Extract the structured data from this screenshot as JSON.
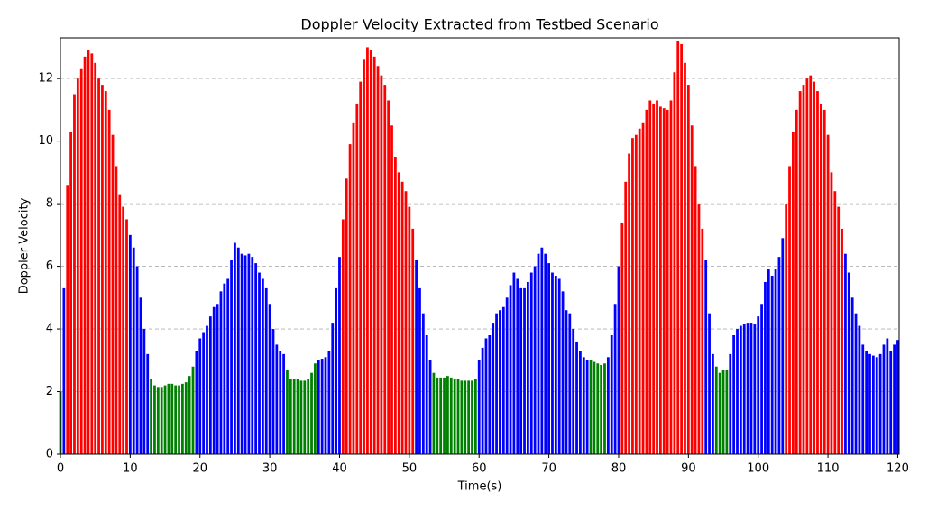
{
  "chart_data": {
    "type": "bar",
    "title": "Doppler Velocity Extracted from Testbed Scenario",
    "xlabel": "Time(s)",
    "ylabel": "Doppler Velocity",
    "x": [
      0,
      0.5,
      1,
      1.5,
      2,
      2.5,
      3,
      3.5,
      4,
      4.5,
      5,
      5.5,
      6,
      6.5,
      7,
      7.5,
      8,
      8.5,
      9,
      9.5,
      10,
      10.5,
      11,
      11.5,
      12,
      12.5,
      13,
      13.5,
      14,
      14.5,
      15,
      15.5,
      16,
      16.5,
      17,
      17.5,
      18,
      18.5,
      19,
      19.5,
      20,
      20.5,
      21,
      21.5,
      22,
      22.5,
      23,
      23.5,
      24,
      24.5,
      25,
      25.5,
      26,
      26.5,
      27,
      27.5,
      28,
      28.5,
      29,
      29.5,
      30,
      30.5,
      31,
      31.5,
      32,
      32.5,
      33,
      33.5,
      34,
      34.5,
      35,
      35.5,
      36,
      36.5,
      37,
      37.5,
      38,
      38.5,
      39,
      39.5,
      40,
      40.5,
      41,
      41.5,
      42,
      42.5,
      43,
      43.5,
      44,
      44.5,
      45,
      45.5,
      46,
      46.5,
      47,
      47.5,
      48,
      48.5,
      49,
      49.5,
      50,
      50.5,
      51,
      51.5,
      52,
      52.5,
      53,
      53.5,
      54,
      54.5,
      55,
      55.5,
      56,
      56.5,
      57,
      57.5,
      58,
      58.5,
      59,
      59.5,
      60,
      60.5,
      61,
      61.5,
      62,
      62.5,
      63,
      63.5,
      64,
      64.5,
      65,
      65.5,
      66,
      66.5,
      67,
      67.5,
      68,
      68.5,
      69,
      69.5,
      70,
      70.5,
      71,
      71.5,
      72,
      72.5,
      73,
      73.5,
      74,
      74.5,
      75,
      75.5,
      76,
      76.5,
      77,
      77.5,
      78,
      78.5,
      79,
      79.5,
      80,
      80.5,
      81,
      81.5,
      82,
      82.5,
      83,
      83.5,
      84,
      84.5,
      85,
      85.5,
      86,
      86.5,
      87,
      87.5,
      88,
      88.5,
      89,
      89.5,
      90,
      90.5,
      91,
      91.5,
      92,
      92.5,
      93,
      93.5,
      94,
      94.5,
      95,
      95.5,
      96,
      96.5,
      97,
      97.5,
      98,
      98.5,
      99,
      99.5,
      100,
      100.5,
      101,
      101.5,
      102,
      102.5,
      103,
      103.5,
      104,
      104.5,
      105,
      105.5,
      106,
      106.5,
      107,
      107.5,
      108,
      108.5,
      109,
      109.5,
      110,
      110.5,
      111,
      111.5,
      112,
      112.5,
      113,
      113.5,
      114,
      114.5,
      115,
      115.5,
      116,
      116.5,
      117,
      117.5,
      118,
      118.5,
      119,
      119.5,
      120
    ],
    "values": [
      2.0,
      5.3,
      8.6,
      10.3,
      11.5,
      12.0,
      12.3,
      12.7,
      12.9,
      12.8,
      12.5,
      12.0,
      11.8,
      11.6,
      11.0,
      10.2,
      9.2,
      8.3,
      7.9,
      7.5,
      7.0,
      6.6,
      6.0,
      5.0,
      4.0,
      3.2,
      2.4,
      2.2,
      2.15,
      2.15,
      2.2,
      2.25,
      2.25,
      2.2,
      2.2,
      2.25,
      2.3,
      2.5,
      2.8,
      3.3,
      3.7,
      3.9,
      4.1,
      4.4,
      4.7,
      4.8,
      5.2,
      5.45,
      5.6,
      6.2,
      6.75,
      6.6,
      6.4,
      6.35,
      6.4,
      6.3,
      6.1,
      5.8,
      5.6,
      5.3,
      4.8,
      4.0,
      3.5,
      3.3,
      3.2,
      2.7,
      2.4,
      2.4,
      2.4,
      2.35,
      2.35,
      2.4,
      2.6,
      2.9,
      3.0,
      3.05,
      3.1,
      3.3,
      4.2,
      5.3,
      6.3,
      7.5,
      8.8,
      9.9,
      10.6,
      11.2,
      11.9,
      12.6,
      13.0,
      12.9,
      12.7,
      12.4,
      12.1,
      11.8,
      11.3,
      10.5,
      9.5,
      9.0,
      8.7,
      8.4,
      7.9,
      7.2,
      6.2,
      5.3,
      4.5,
      3.8,
      3.0,
      2.6,
      2.45,
      2.45,
      2.45,
      2.5,
      2.45,
      2.4,
      2.4,
      2.35,
      2.35,
      2.35,
      2.35,
      2.4,
      3.0,
      3.4,
      3.7,
      3.8,
      4.2,
      4.5,
      4.6,
      4.7,
      5.0,
      5.4,
      5.8,
      5.6,
      5.3,
      5.3,
      5.5,
      5.8,
      6.0,
      6.4,
      6.6,
      6.4,
      6.1,
      5.8,
      5.7,
      5.6,
      5.2,
      4.6,
      4.5,
      4.0,
      3.6,
      3.3,
      3.1,
      3.0,
      3.0,
      2.95,
      2.9,
      2.85,
      2.9,
      3.1,
      3.8,
      4.8,
      6.0,
      7.4,
      8.7,
      9.6,
      10.1,
      10.2,
      10.4,
      10.6,
      11.0,
      11.3,
      11.2,
      11.3,
      11.1,
      11.05,
      11.0,
      11.3,
      12.2,
      13.2,
      13.1,
      12.5,
      11.8,
      10.5,
      9.2,
      8.0,
      7.2,
      6.2,
      4.5,
      3.2,
      2.8,
      2.6,
      2.7,
      2.7,
      3.2,
      3.8,
      4.0,
      4.1,
      4.15,
      4.2,
      4.2,
      4.15,
      4.4,
      4.8,
      5.5,
      5.9,
      5.7,
      5.9,
      6.3,
      6.9,
      8.0,
      9.2,
      10.3,
      11.0,
      11.6,
      11.8,
      12.0,
      12.1,
      11.9,
      11.6,
      11.2,
      11.0,
      10.2,
      9.0,
      8.4,
      7.9,
      7.2,
      6.4,
      5.8,
      5.0,
      4.5,
      4.1,
      3.5,
      3.3,
      3.2,
      3.15,
      3.1,
      3.2,
      3.5,
      3.7,
      3.3,
      3.5,
      3.65
    ],
    "colors": [
      "green",
      "blue",
      "red",
      "red",
      "red",
      "red",
      "red",
      "red",
      "red",
      "red",
      "red",
      "red",
      "red",
      "red",
      "red",
      "red",
      "red",
      "red",
      "red",
      "red",
      "blue",
      "blue",
      "blue",
      "blue",
      "blue",
      "blue",
      "green",
      "green",
      "green",
      "green",
      "green",
      "green",
      "green",
      "green",
      "green",
      "green",
      "green",
      "green",
      "green",
      "blue",
      "blue",
      "blue",
      "blue",
      "blue",
      "blue",
      "blue",
      "blue",
      "blue",
      "blue",
      "blue",
      "blue",
      "blue",
      "blue",
      "blue",
      "blue",
      "blue",
      "blue",
      "blue",
      "blue",
      "blue",
      "blue",
      "blue",
      "blue",
      "blue",
      "blue",
      "green",
      "green",
      "green",
      "green",
      "green",
      "green",
      "green",
      "green",
      "green",
      "blue",
      "blue",
      "blue",
      "blue",
      "blue",
      "blue",
      "blue",
      "red",
      "red",
      "red",
      "red",
      "red",
      "red",
      "red",
      "red",
      "red",
      "red",
      "red",
      "red",
      "red",
      "red",
      "red",
      "red",
      "red",
      "red",
      "red",
      "red",
      "red",
      "blue",
      "blue",
      "blue",
      "blue",
      "blue",
      "green",
      "green",
      "green",
      "green",
      "green",
      "green",
      "green",
      "green",
      "green",
      "green",
      "green",
      "green",
      "green",
      "blue",
      "blue",
      "blue",
      "blue",
      "blue",
      "blue",
      "blue",
      "blue",
      "blue",
      "blue",
      "blue",
      "blue",
      "blue",
      "blue",
      "blue",
      "blue",
      "blue",
      "blue",
      "blue",
      "blue",
      "blue",
      "blue",
      "blue",
      "blue",
      "blue",
      "blue",
      "blue",
      "blue",
      "blue",
      "blue",
      "blue",
      "blue",
      "green",
      "green",
      "green",
      "green",
      "green",
      "blue",
      "blue",
      "blue",
      "blue",
      "red",
      "red",
      "red",
      "red",
      "red",
      "red",
      "red",
      "red",
      "red",
      "red",
      "red",
      "red",
      "red",
      "red",
      "red",
      "red",
      "red",
      "red",
      "red",
      "red",
      "red",
      "red",
      "red",
      "red",
      "blue",
      "blue",
      "blue",
      "green",
      "green",
      "green",
      "green",
      "blue",
      "blue",
      "blue",
      "blue",
      "blue",
      "blue",
      "blue",
      "blue",
      "blue",
      "blue",
      "blue",
      "blue",
      "blue",
      "blue",
      "blue",
      "blue",
      "red",
      "red",
      "red",
      "red",
      "red",
      "red",
      "red",
      "red",
      "red",
      "red",
      "red",
      "red",
      "red",
      "red",
      "red",
      "red",
      "red",
      "blue",
      "blue",
      "blue",
      "blue",
      "blue",
      "blue",
      "blue",
      "blue",
      "blue",
      "blue",
      "blue",
      "blue",
      "blue",
      "blue",
      "blue",
      "blue"
    ],
    "xlim": [
      0,
      120.2
    ],
    "ylim": [
      0,
      13.3
    ],
    "xticks": [
      0,
      10,
      20,
      30,
      40,
      50,
      60,
      70,
      80,
      90,
      100,
      110,
      120
    ],
    "yticks": [
      0,
      2,
      4,
      6,
      8,
      10,
      12
    ],
    "grid": true
  }
}
